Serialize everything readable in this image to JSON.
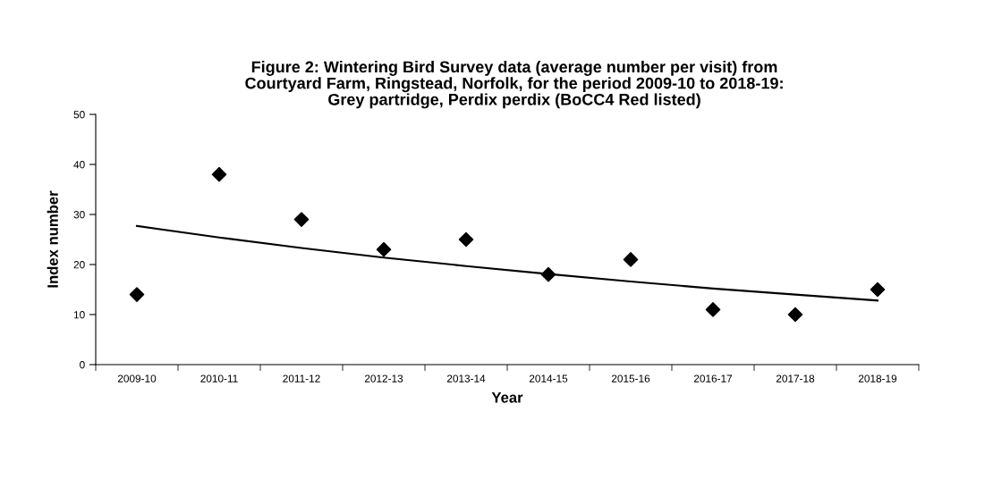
{
  "chart_data": {
    "type": "scatter",
    "title": "Figure 2: Wintering Bird Survey data (average number per visit) from\nCourtyard Farm, Ringstead, Norfolk, for the period 2009-10 to 2018-19:\nGrey partridge, Perdix perdix (BoCC4 Red listed)",
    "xlabel": "Year",
    "ylabel": "Index number",
    "categories": [
      "2009-10",
      "2010-11",
      "2011-12",
      "2012-13",
      "2013-14",
      "2014-15",
      "2015-16",
      "2016-17",
      "2017-18",
      "2018-19"
    ],
    "series": [
      {
        "color": "#000000",
        "marker": "diamond",
        "values": [
          14,
          38,
          29,
          23,
          25,
          18,
          21,
          11,
          10,
          15
        ]
      },
      {
        "type": "line",
        "color": "#000000",
        "marker": "none",
        "line_style": "solid",
        "values": [
          27.7,
          25.4,
          23.3,
          21.4,
          19.7,
          18.1,
          16.6,
          15.2,
          14.0,
          12.8
        ]
      }
    ],
    "ylim": [
      0,
      50
    ],
    "yticks": [
      0,
      10,
      20,
      30,
      40,
      50
    ],
    "grid": false,
    "legend": false
  }
}
